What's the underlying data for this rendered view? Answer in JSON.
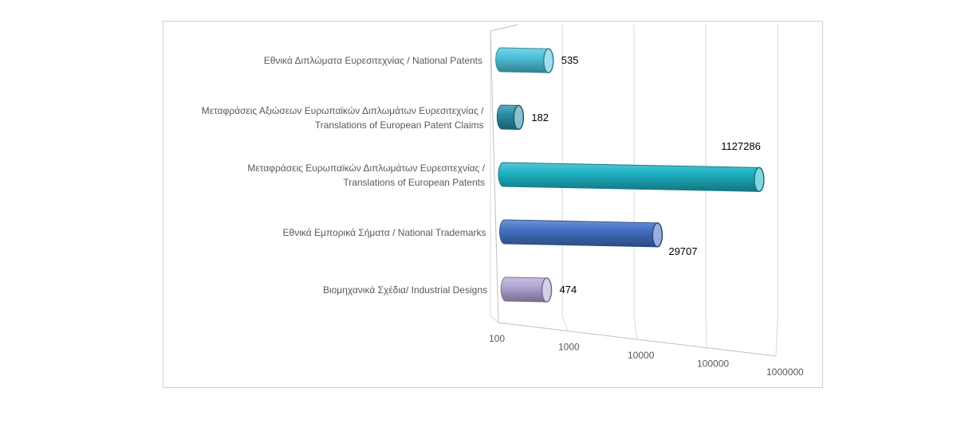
{
  "chart_data": {
    "type": "bar",
    "orientation": "horizontal",
    "style": "3d-cylinder",
    "x_scale": "log",
    "xlim": [
      100,
      1000000
    ],
    "x_ticks": [
      "100",
      "1000",
      "10000",
      "100000",
      "1000000"
    ],
    "grid": true,
    "legend": "none",
    "categories": [
      [
        "Εθνικά Διπλώματα Ευρεσιτεχνίας / National Patents"
      ],
      [
        "Μεταφράσεις Αξιώσεων Ευρωπαϊκών Διπλωμάτων Ευρεσιτεχνίας /",
        "Translations of European Patent Claims"
      ],
      [
        "Μεταφράσεις Ευρωπαϊκών Διπλωμάτων Ευρεσιτεχνίας /",
        "Translations of European Patents"
      ],
      [
        "Εθνικά Εμπορικά Σήματα / National Trademarks"
      ],
      [
        "Βιομηχανικά Σχέδια/ Industrial Designs"
      ]
    ],
    "values": [
      535,
      182,
      1127286,
      29707,
      474
    ],
    "value_labels": [
      "535",
      "182",
      "1127286",
      "29707",
      "474"
    ],
    "colors": [
      "#4fc3dc",
      "#2a8fa8",
      "#1fb3c4",
      "#4472c4",
      "#b4a7d6"
    ]
  }
}
